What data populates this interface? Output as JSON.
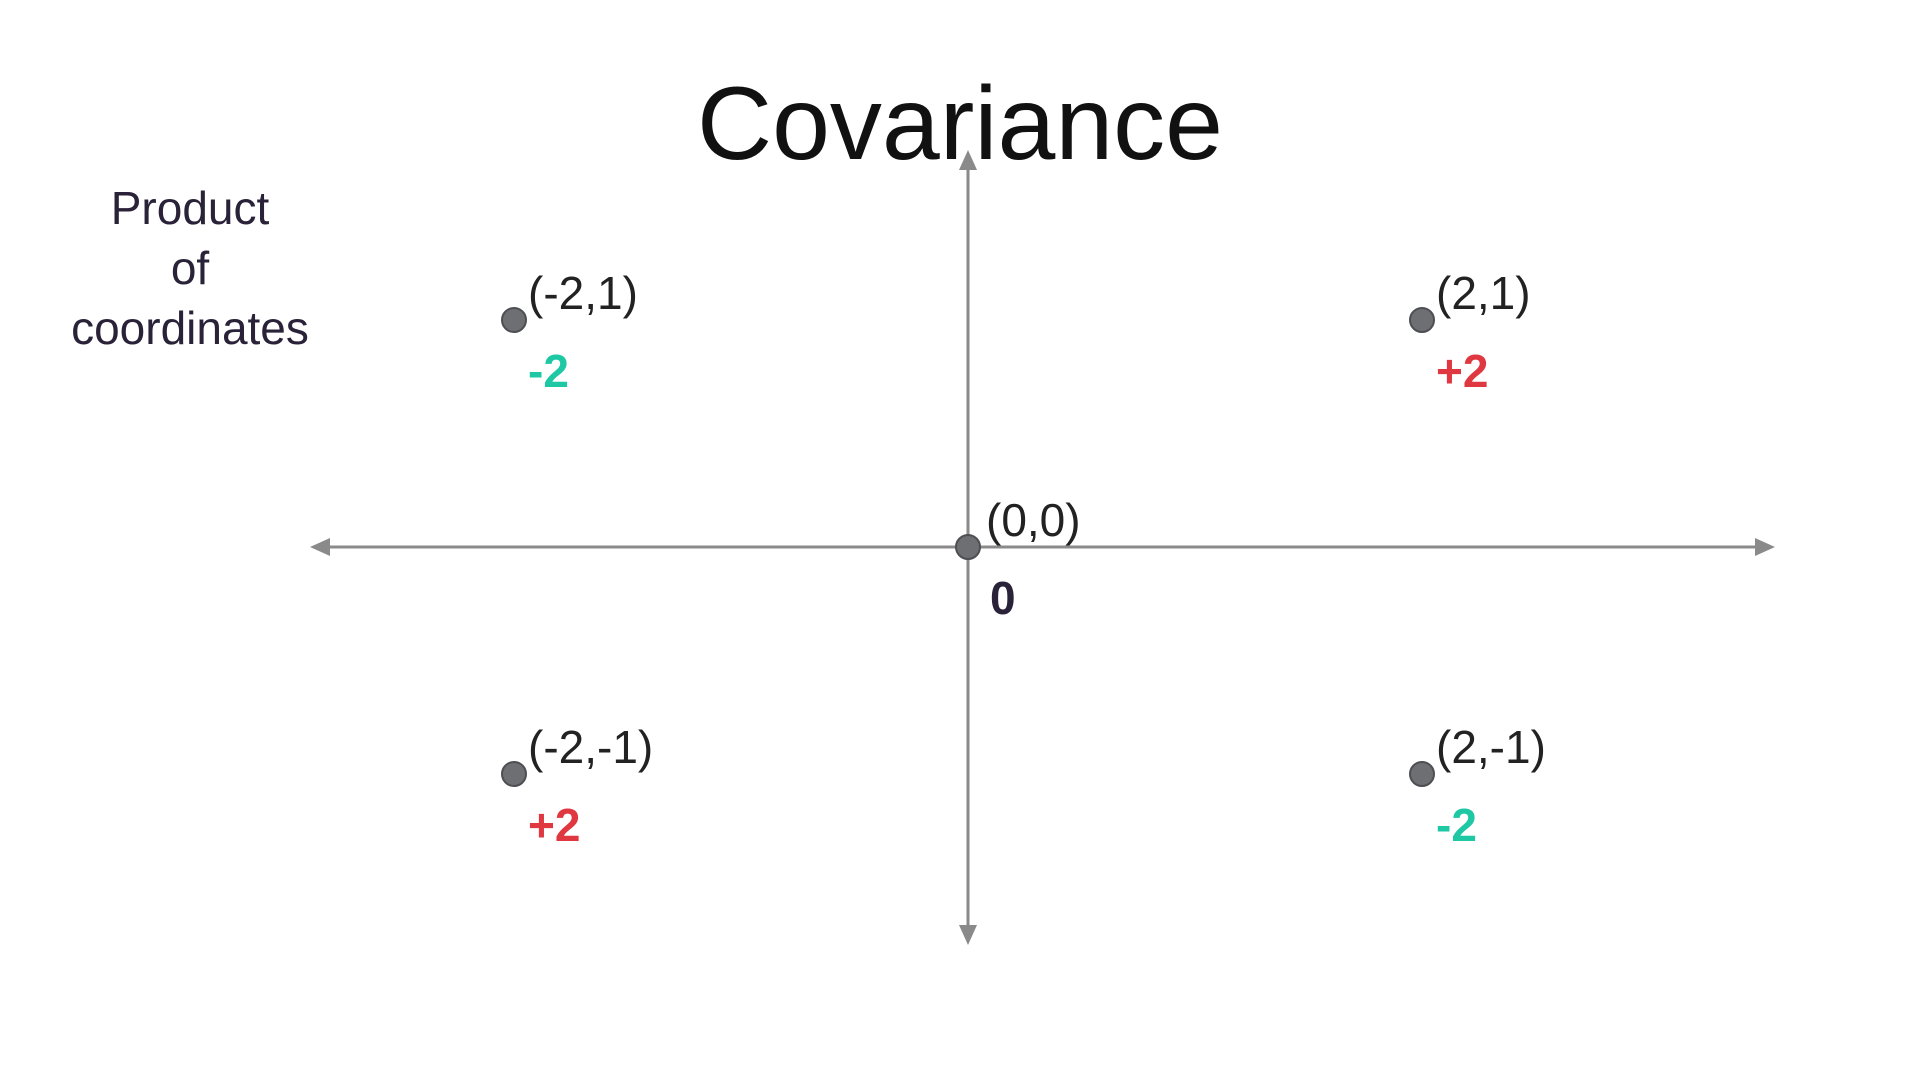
{
  "title": "Covariance",
  "side_label": [
    "Product",
    "of",
    "coordinates"
  ],
  "colors": {
    "axis": "#8a8a8a",
    "point_fill": "#6e6f73",
    "point_stroke": "#4e4f53",
    "positive": "#e03840",
    "negative": "#1ec8a4",
    "zero": "#2a2238"
  },
  "points": [
    {
      "id": "pt-neg2-1",
      "x": -2,
      "y": 1,
      "label": "(-2,1)",
      "product": "-2",
      "sign": "negative"
    },
    {
      "id": "pt-2-1",
      "x": 2,
      "y": 1,
      "label": "(2,1)",
      "product": "+2",
      "sign": "positive"
    },
    {
      "id": "pt-0-0",
      "x": 0,
      "y": 0,
      "label": "(0,0)",
      "product": "0",
      "sign": "zero"
    },
    {
      "id": "pt-neg2-neg1",
      "x": -2,
      "y": -1,
      "label": "(-2,-1)",
      "product": "+2",
      "sign": "positive"
    },
    {
      "id": "pt-2-neg1",
      "x": 2,
      "y": -1,
      "label": "(2,-1)",
      "product": "-2",
      "sign": "negative"
    }
  ]
}
